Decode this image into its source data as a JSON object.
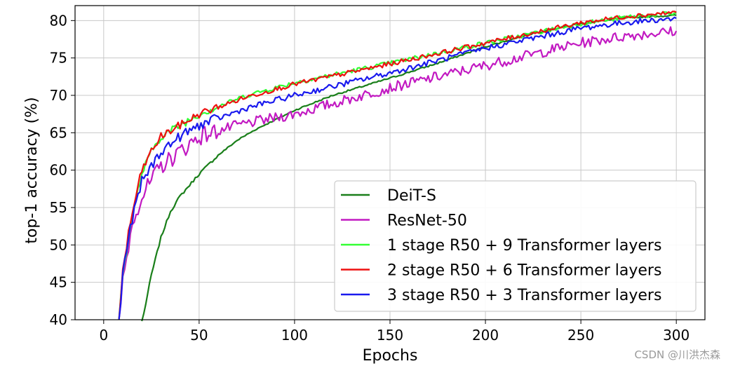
{
  "chart_data": {
    "type": "line",
    "xlabel": "Epochs",
    "ylabel": "top-1 accuracy (%)",
    "xlim": [
      -15,
      315
    ],
    "ylim": [
      40,
      82
    ],
    "xticks": [
      0,
      50,
      100,
      150,
      200,
      250,
      300
    ],
    "yticks": [
      40,
      45,
      50,
      55,
      60,
      65,
      70,
      75,
      80
    ],
    "grid": true,
    "legend_position": "lower-right",
    "series": [
      {
        "name": "DeiT-S",
        "color": "#1a7f1a",
        "noise": 0.15,
        "points": [
          [
            20,
            39.5
          ],
          [
            25,
            46
          ],
          [
            30,
            51
          ],
          [
            35,
            54.5
          ],
          [
            40,
            56.5
          ],
          [
            50,
            59.5
          ],
          [
            60,
            62
          ],
          [
            70,
            64
          ],
          [
            80,
            65.5
          ],
          [
            100,
            68
          ],
          [
            120,
            70
          ],
          [
            150,
            72.3
          ],
          [
            175,
            74.3
          ],
          [
            200,
            76.5
          ],
          [
            225,
            78.3
          ],
          [
            250,
            79.6
          ],
          [
            275,
            80.4
          ],
          [
            300,
            80.7
          ]
        ]
      },
      {
        "name": "ResNet-50",
        "color": "#c21ac2",
        "noise": 1.0,
        "points": [
          [
            8,
            40
          ],
          [
            10,
            45
          ],
          [
            13,
            50
          ],
          [
            16,
            54
          ],
          [
            20,
            56.5
          ],
          [
            25,
            58.5
          ],
          [
            30,
            60.5
          ],
          [
            40,
            62.5
          ],
          [
            50,
            64.5
          ],
          [
            70,
            66
          ],
          [
            100,
            67.5
          ],
          [
            150,
            71
          ],
          [
            200,
            74
          ],
          [
            250,
            77
          ],
          [
            275,
            78
          ],
          [
            300,
            78.6
          ]
        ]
      },
      {
        "name": "1 stage R50 + 9 Transformer layers",
        "color": "#33ff33",
        "noise": 0.45,
        "points": [
          [
            8,
            40
          ],
          [
            10,
            46
          ],
          [
            13,
            51
          ],
          [
            16,
            55
          ],
          [
            20,
            59.5
          ],
          [
            25,
            62.5
          ],
          [
            30,
            64.5
          ],
          [
            40,
            66
          ],
          [
            50,
            67.5
          ],
          [
            75,
            70
          ],
          [
            100,
            71.7
          ],
          [
            150,
            74.3
          ],
          [
            200,
            77
          ],
          [
            250,
            79.6
          ],
          [
            275,
            80.5
          ],
          [
            300,
            81
          ]
        ]
      },
      {
        "name": "2 stage R50 + 6 Transformer layers",
        "color": "#ee1111",
        "noise": 0.45,
        "points": [
          [
            8,
            40
          ],
          [
            10,
            46.5
          ],
          [
            13,
            51.5
          ],
          [
            16,
            55.5
          ],
          [
            20,
            60
          ],
          [
            25,
            62.5
          ],
          [
            30,
            64.5
          ],
          [
            40,
            66
          ],
          [
            50,
            67.5
          ],
          [
            75,
            69.8
          ],
          [
            100,
            71.5
          ],
          [
            150,
            74.2
          ],
          [
            200,
            77
          ],
          [
            250,
            79.7
          ],
          [
            275,
            80.6
          ],
          [
            300,
            81.1
          ]
        ]
      },
      {
        "name": "3 stage R50 + 3 Transformer layers",
        "color": "#1a1aee",
        "noise": 0.55,
        "points": [
          [
            8,
            40
          ],
          [
            10,
            46
          ],
          [
            13,
            51
          ],
          [
            16,
            54.5
          ],
          [
            20,
            58.5
          ],
          [
            25,
            60.5
          ],
          [
            30,
            62.5
          ],
          [
            40,
            64.5
          ],
          [
            50,
            66
          ],
          [
            75,
            68.3
          ],
          [
            100,
            70
          ],
          [
            150,
            73
          ],
          [
            200,
            76.3
          ],
          [
            250,
            79
          ],
          [
            275,
            79.8
          ],
          [
            300,
            80.3
          ]
        ]
      }
    ]
  },
  "watermark": "CSDN @川洪杰森"
}
